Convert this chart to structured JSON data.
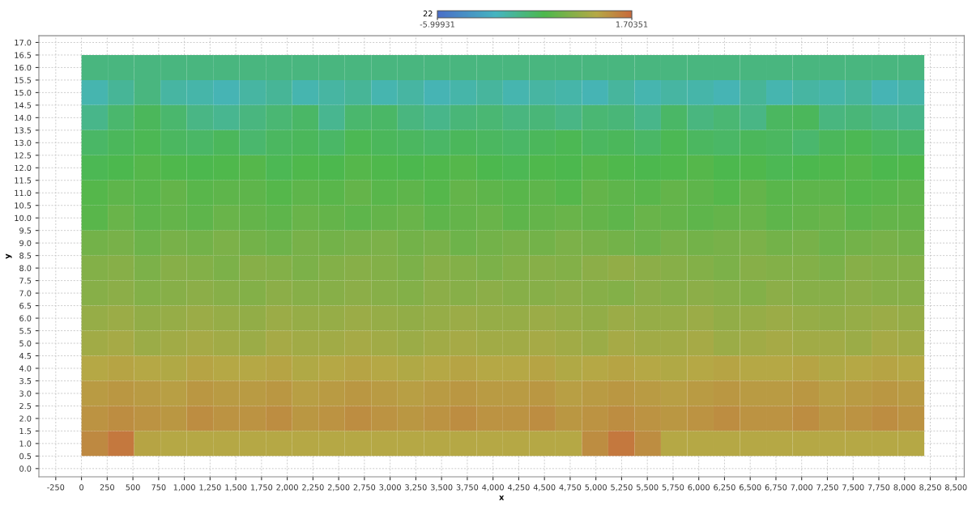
{
  "chart_data": {
    "type": "heatmap",
    "xlabel": "x",
    "ylabel": "y",
    "clabel": "22",
    "x": [
      128,
      384,
      640,
      896,
      1152,
      1408,
      1664,
      1920,
      2176,
      2432,
      2688,
      2944,
      3200,
      3456,
      3712,
      3968,
      4224,
      4480,
      4736,
      4992,
      5248,
      5504,
      5760,
      6016,
      6272,
      6528,
      6784,
      7040,
      7296,
      7552,
      7808,
      8064
    ],
    "y": [
      16,
      15,
      14,
      13,
      12,
      11,
      10,
      9,
      8,
      7,
      6,
      5,
      4,
      3,
      2,
      1
    ],
    "cells": [
      [
        -2.6,
        -2.6,
        -2.6,
        -2.6,
        -2.6,
        -2.6,
        -2.6,
        -2.6,
        -2.6,
        -2.6,
        -2.6,
        -2.6,
        -2.6,
        -2.6,
        -2.6,
        -2.6,
        -2.6,
        -2.6,
        -2.6,
        -2.6,
        -2.6,
        -2.6,
        -2.6,
        -2.6,
        -2.6,
        -2.6,
        -2.6,
        -2.6,
        -2.6,
        -2.6,
        -2.6,
        -2.6
      ],
      [
        -3.4,
        -3.0,
        -2.6,
        -3.2,
        -3.3,
        -3.5,
        -3.2,
        -3.0,
        -3.4,
        -3.2,
        -3.0,
        -3.4,
        -3.2,
        -3.5,
        -3.3,
        -3.1,
        -3.4,
        -3.2,
        -3.3,
        -3.5,
        -3.1,
        -3.4,
        -3.2,
        -3.3,
        -3.5,
        -3.0,
        -3.4,
        -3.2,
        -3.3,
        -3.1,
        -3.5,
        -3.3
      ],
      [
        -2.8,
        -2.3,
        -2.0,
        -2.3,
        -2.7,
        -2.9,
        -2.6,
        -2.4,
        -2.2,
        -2.9,
        -2.3,
        -2.2,
        -2.6,
        -2.8,
        -2.5,
        -2.4,
        -2.6,
        -2.5,
        -2.7,
        -2.4,
        -2.5,
        -2.8,
        -2.2,
        -2.6,
        -2.4,
        -2.7,
        -2.1,
        -2.0,
        -2.6,
        -2.5,
        -2.7,
        -2.8
      ],
      [
        -2.2,
        -2.0,
        -1.9,
        -2.1,
        -2.2,
        -2.0,
        -2.3,
        -2.1,
        -2.0,
        -2.2,
        -1.9,
        -2.0,
        -2.1,
        -2.2,
        -2.0,
        -2.1,
        -2.2,
        -2.0,
        -1.9,
        -2.1,
        -2.0,
        -2.2,
        -1.9,
        -2.1,
        -2.2,
        -2.0,
        -2.1,
        -2.3,
        -2.0,
        -1.9,
        -2.1,
        -2.2
      ],
      [
        -1.9,
        -1.8,
        -1.6,
        -1.7,
        -1.8,
        -1.7,
        -1.6,
        -1.9,
        -1.7,
        -1.8,
        -1.6,
        -1.7,
        -1.8,
        -1.7,
        -1.6,
        -1.8,
        -1.9,
        -1.7,
        -1.8,
        -1.6,
        -1.7,
        -1.8,
        -1.7,
        -1.6,
        -1.8,
        -1.7,
        -1.9,
        -1.8,
        -1.7,
        -1.6,
        -1.8,
        -1.7
      ],
      [
        -1.6,
        -1.4,
        -1.5,
        -1.3,
        -1.5,
        -1.4,
        -1.4,
        -1.6,
        -1.4,
        -1.5,
        -1.3,
        -1.5,
        -1.4,
        -1.6,
        -1.3,
        -1.4,
        -1.5,
        -1.4,
        -1.6,
        -1.3,
        -1.4,
        -1.5,
        -1.3,
        -1.4,
        -1.6,
        -1.3,
        -1.5,
        -1.4,
        -1.4,
        -1.6,
        -1.5,
        -1.4
      ],
      [
        -1.5,
        -1.2,
        -1.4,
        -1.3,
        -1.4,
        -1.2,
        -1.3,
        -1.4,
        -1.2,
        -1.3,
        -1.4,
        -1.3,
        -1.2,
        -1.4,
        -1.3,
        -1.2,
        -1.4,
        -1.3,
        -1.2,
        -1.3,
        -1.4,
        -1.2,
        -1.3,
        -1.4,
        -1.3,
        -1.2,
        -1.4,
        -1.3,
        -1.2,
        -1.4,
        -1.3,
        -1.3
      ],
      [
        -1.0,
        -0.9,
        -1.1,
        -0.9,
        -1.0,
        -0.8,
        -1.0,
        -1.1,
        -0.9,
        -1.0,
        -0.9,
        -0.8,
        -1.0,
        -0.9,
        -1.1,
        -1.0,
        -0.9,
        -1.0,
        -0.8,
        -0.9,
        -1.0,
        -1.1,
        -0.9,
        -1.0,
        -0.9,
        -0.8,
        -1.0,
        -0.9,
        -1.1,
        -1.0,
        -0.9,
        -1.0
      ],
      [
        -0.7,
        -0.6,
        -0.8,
        -0.6,
        -0.7,
        -0.8,
        -0.6,
        -0.7,
        -0.8,
        -0.7,
        -0.6,
        -0.7,
        -0.8,
        -0.6,
        -0.7,
        -0.8,
        -0.7,
        -0.6,
        -0.7,
        -0.5,
        -0.4,
        -0.5,
        -0.6,
        -0.7,
        -0.8,
        -0.6,
        -0.7,
        -0.7,
        -0.8,
        -0.6,
        -0.7,
        -0.7
      ],
      [
        -0.6,
        -0.5,
        -0.7,
        -0.6,
        -0.5,
        -0.6,
        -0.7,
        -0.5,
        -0.6,
        -0.6,
        -0.5,
        -0.6,
        -0.7,
        -0.5,
        -0.6,
        -0.5,
        -0.6,
        -0.6,
        -0.5,
        -0.6,
        -0.7,
        -0.5,
        -0.6,
        -0.5,
        -0.6,
        -0.7,
        -0.5,
        -0.6,
        -0.6,
        -0.5,
        -0.6,
        -0.6
      ],
      [
        -0.3,
        -0.2,
        -0.4,
        -0.3,
        -0.2,
        -0.3,
        -0.4,
        -0.2,
        -0.3,
        -0.3,
        -0.2,
        -0.3,
        -0.4,
        -0.3,
        -0.2,
        -0.3,
        -0.3,
        -0.2,
        -0.3,
        -0.4,
        -0.2,
        -0.3,
        -0.3,
        -0.2,
        -0.4,
        -0.3,
        -0.2,
        -0.3,
        -0.4,
        -0.3,
        -0.2,
        -0.3
      ],
      [
        -0.1,
        0.0,
        -0.2,
        -0.1,
        0.0,
        -0.1,
        -0.2,
        0.0,
        -0.1,
        -0.1,
        0.0,
        -0.1,
        -0.2,
        -0.1,
        0.0,
        -0.1,
        -0.1,
        0.0,
        -0.1,
        -0.2,
        0.0,
        -0.1,
        -0.1,
        0.0,
        -0.2,
        -0.1,
        0.0,
        -0.1,
        -0.1,
        -0.2,
        0.0,
        -0.1
      ],
      [
        0.3,
        0.4,
        0.3,
        0.2,
        0.4,
        0.3,
        0.3,
        0.4,
        0.2,
        0.3,
        0.4,
        0.3,
        0.2,
        0.3,
        0.4,
        0.3,
        0.3,
        0.4,
        0.2,
        0.3,
        0.4,
        0.3,
        0.2,
        0.3,
        0.4,
        0.3,
        0.3,
        0.4,
        0.2,
        0.3,
        0.4,
        0.3
      ],
      [
        0.6,
        0.7,
        0.6,
        0.5,
        0.7,
        0.6,
        0.6,
        0.7,
        0.5,
        0.6,
        0.7,
        0.6,
        0.5,
        0.6,
        0.7,
        0.6,
        0.6,
        0.7,
        0.5,
        0.6,
        0.7,
        0.6,
        0.5,
        0.6,
        0.7,
        0.6,
        0.6,
        0.7,
        0.5,
        0.6,
        0.7,
        0.6
      ],
      [
        0.8,
        0.9,
        0.8,
        0.7,
        0.9,
        0.8,
        0.8,
        0.9,
        0.7,
        0.8,
        0.9,
        0.8,
        0.7,
        0.8,
        0.9,
        0.8,
        0.8,
        0.9,
        0.7,
        0.8,
        0.9,
        0.8,
        0.7,
        0.8,
        0.9,
        0.8,
        0.8,
        0.9,
        0.7,
        0.8,
        0.9,
        0.8
      ],
      [
        1.0,
        1.4,
        0.4,
        0.3,
        0.3,
        0.3,
        0.3,
        0.3,
        0.3,
        0.3,
        0.3,
        0.3,
        0.3,
        0.3,
        0.3,
        0.3,
        0.3,
        0.3,
        0.3,
        0.9,
        1.4,
        0.9,
        0.3,
        0.3,
        0.3,
        0.3,
        0.3,
        0.3,
        0.3,
        0.3,
        0.3,
        0.3
      ]
    ],
    "clim": [
      -5.99931,
      1.70351
    ],
    "cticks": [
      {
        "value": -5.99931,
        "label": "-5.99931"
      },
      {
        "value": 1.70351,
        "label": "1.70351"
      }
    ],
    "xlim": [
      -414,
      8580
    ],
    "ylim": [
      -0.33,
      17.27
    ],
    "xticks": [
      -250,
      0,
      250,
      500,
      750,
      {
        "value": 1000,
        "label": "1,000"
      },
      {
        "value": 1250,
        "label": "1,250"
      },
      {
        "value": 1500,
        "label": "1,500"
      },
      {
        "value": 1750,
        "label": "1,750"
      },
      {
        "value": 2000,
        "label": "2,000"
      },
      {
        "value": 2250,
        "label": "2,250"
      },
      {
        "value": 2500,
        "label": "2,500"
      },
      {
        "value": 2750,
        "label": "2,750"
      },
      {
        "value": 3000,
        "label": "3,000"
      },
      {
        "value": 3250,
        "label": "3,250"
      },
      {
        "value": 3500,
        "label": "3,500"
      },
      {
        "value": 3750,
        "label": "3,750"
      },
      {
        "value": 4000,
        "label": "4,000"
      },
      {
        "value": 4250,
        "label": "4,250"
      },
      {
        "value": 4500,
        "label": "4,500"
      },
      {
        "value": 4750,
        "label": "4,750"
      },
      {
        "value": 5000,
        "label": "5,000"
      },
      {
        "value": 5250,
        "label": "5,250"
      },
      {
        "value": 5500,
        "label": "5,500"
      },
      {
        "value": 5750,
        "label": "5,750"
      },
      {
        "value": 6000,
        "label": "6,000"
      },
      {
        "value": 6250,
        "label": "6,250"
      },
      {
        "value": 6500,
        "label": "6,500"
      },
      {
        "value": 6750,
        "label": "6,750"
      },
      {
        "value": 7000,
        "label": "7,000"
      },
      {
        "value": 7250,
        "label": "7,250"
      },
      {
        "value": 7500,
        "label": "7,500"
      },
      {
        "value": 7750,
        "label": "7,750"
      },
      {
        "value": 8000,
        "label": "8,000"
      },
      {
        "value": 8250,
        "label": "8,250"
      },
      {
        "value": 8500,
        "label": "8,500"
      }
    ],
    "yticks": [
      {
        "value": 0,
        "label": "0.0"
      },
      0.5,
      {
        "value": 1,
        "label": "1.0"
      },
      1.5,
      {
        "value": 2,
        "label": "2.0"
      },
      2.5,
      {
        "value": 3,
        "label": "3.0"
      },
      3.5,
      {
        "value": 4,
        "label": "4.0"
      },
      4.5,
      {
        "value": 5,
        "label": "5.0"
      },
      5.5,
      {
        "value": 6,
        "label": "6.0"
      },
      6.5,
      {
        "value": 7,
        "label": "7.0"
      },
      7.5,
      {
        "value": 8,
        "label": "8.0"
      },
      8.5,
      {
        "value": 9,
        "label": "9.0"
      },
      9.5,
      {
        "value": 10,
        "label": "10.0"
      },
      10.5,
      {
        "value": 11,
        "label": "11.0"
      },
      11.5,
      {
        "value": 12,
        "label": "12.0"
      },
      12.5,
      {
        "value": 13,
        "label": "13.0"
      },
      13.5,
      {
        "value": 14,
        "label": "14.0"
      },
      14.5,
      {
        "value": 15,
        "label": "15.0"
      },
      15.5,
      {
        "value": 16,
        "label": "16.0"
      },
      16.5,
      {
        "value": 17,
        "label": "17.0"
      }
    ],
    "grid": true
  }
}
